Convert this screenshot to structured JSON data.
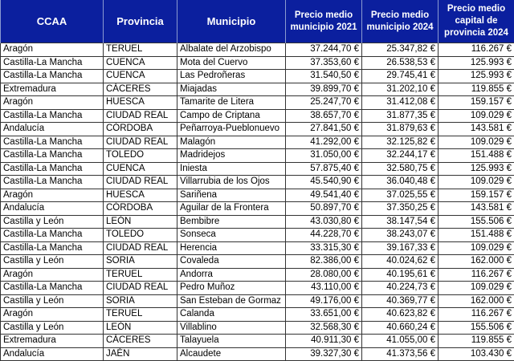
{
  "headers": [
    "CCAA",
    "Provincia",
    "Municipio",
    "Precio medio municipio 2021",
    "Precio medio municipio 2024",
    "Precio medio capital de provincia 2024"
  ],
  "rows": [
    [
      "Aragón",
      "TERUEL",
      "Albalate del Arzobispo",
      "37.244,70 €",
      "25.347,82 €",
      "116.267 €"
    ],
    [
      "Castilla-La Mancha",
      "CUENCA",
      "Mota del Cuervo",
      "37.353,60 €",
      "26.538,53 €",
      "125.993 €"
    ],
    [
      "Castilla-La Mancha",
      "CUENCA",
      "Las Pedroñeras",
      "31.540,50 €",
      "29.745,41 €",
      "125.993 €"
    ],
    [
      "Extremadura",
      "CÁCERES",
      "Miajadas",
      "39.899,70 €",
      "31.202,10 €",
      "119.855 €"
    ],
    [
      "Aragón",
      "HUESCA",
      "Tamarite de Litera",
      "25.247,70 €",
      "31.412,08 €",
      "159.157 €"
    ],
    [
      "Castilla-La Mancha",
      "CIUDAD REAL",
      "Campo de Criptana",
      "38.657,70 €",
      "31.877,35 €",
      "109.029 €"
    ],
    [
      "Andalucía",
      "CÓRDOBA",
      "Peñarroya-Pueblonuevo",
      "27.841,50 €",
      "31.879,63 €",
      "143.581 €"
    ],
    [
      "Castilla-La Mancha",
      "CIUDAD REAL",
      "Malagón",
      "41.292,00 €",
      "32.125,82 €",
      "109.029 €"
    ],
    [
      "Castilla-La Mancha",
      "TOLEDO",
      "Madridejos",
      "31.050,00 €",
      "32.244,17 €",
      "151.488 €"
    ],
    [
      "Castilla-La Mancha",
      "CUENCA",
      "Iniesta",
      "57.875,40 €",
      "32.580,75 €",
      "125.993 €"
    ],
    [
      "Castilla-La Mancha",
      "CIUDAD REAL",
      "Villarrubia de los Ojos",
      "45.540,90 €",
      "36.040,48 €",
      "109.029 €"
    ],
    [
      "Aragón",
      "HUESCA",
      "Sariñena",
      "49.541,40 €",
      "37.025,55 €",
      "159.157 €"
    ],
    [
      "Andalucía",
      "CÓRDOBA",
      "Aguilar de la Frontera",
      "50.897,70 €",
      "37.350,25 €",
      "143.581 €"
    ],
    [
      "Castilla y León",
      "LEÓN",
      "Bembibre",
      "43.030,80 €",
      "38.147,54 €",
      "155.506 €"
    ],
    [
      "Castilla-La Mancha",
      "TOLEDO",
      "Sonseca",
      "44.228,70 €",
      "38.243,07 €",
      "151.488 €"
    ],
    [
      "Castilla-La Mancha",
      "CIUDAD REAL",
      "Herencia",
      "33.315,30 €",
      "39.167,33 €",
      "109.029 €"
    ],
    [
      "Castilla y León",
      "SORIA",
      "Covaleda",
      "82.386,00 €",
      "40.024,62 €",
      "162.000 €"
    ],
    [
      "Aragón",
      "TERUEL",
      "Andorra",
      "28.080,00 €",
      "40.195,61 €",
      "116.267 €"
    ],
    [
      "Castilla-La Mancha",
      "CIUDAD REAL",
      "Pedro Muñoz",
      "43.110,00 €",
      "40.224,73 €",
      "109.029 €"
    ],
    [
      "Castilla y León",
      "SORIA",
      "San Esteban de Gormaz",
      "49.176,00 €",
      "40.369,77 €",
      "162.000 €"
    ],
    [
      "Aragón",
      "TERUEL",
      "Calanda",
      "33.651,00 €",
      "40.623,82 €",
      "116.267 €"
    ],
    [
      "Castilla y León",
      "LEÓN",
      "Villablino",
      "32.568,30 €",
      "40.660,24 €",
      "155.506 €"
    ],
    [
      "Extremadura",
      "CÁCERES",
      "Talayuela",
      "40.911,30 €",
      "41.055,00 €",
      "119.855 €"
    ],
    [
      "Andalucía",
      "JAÉN",
      "Alcaudete",
      "39.327,30 €",
      "41.373,56 €",
      "103.430 €"
    ]
  ]
}
